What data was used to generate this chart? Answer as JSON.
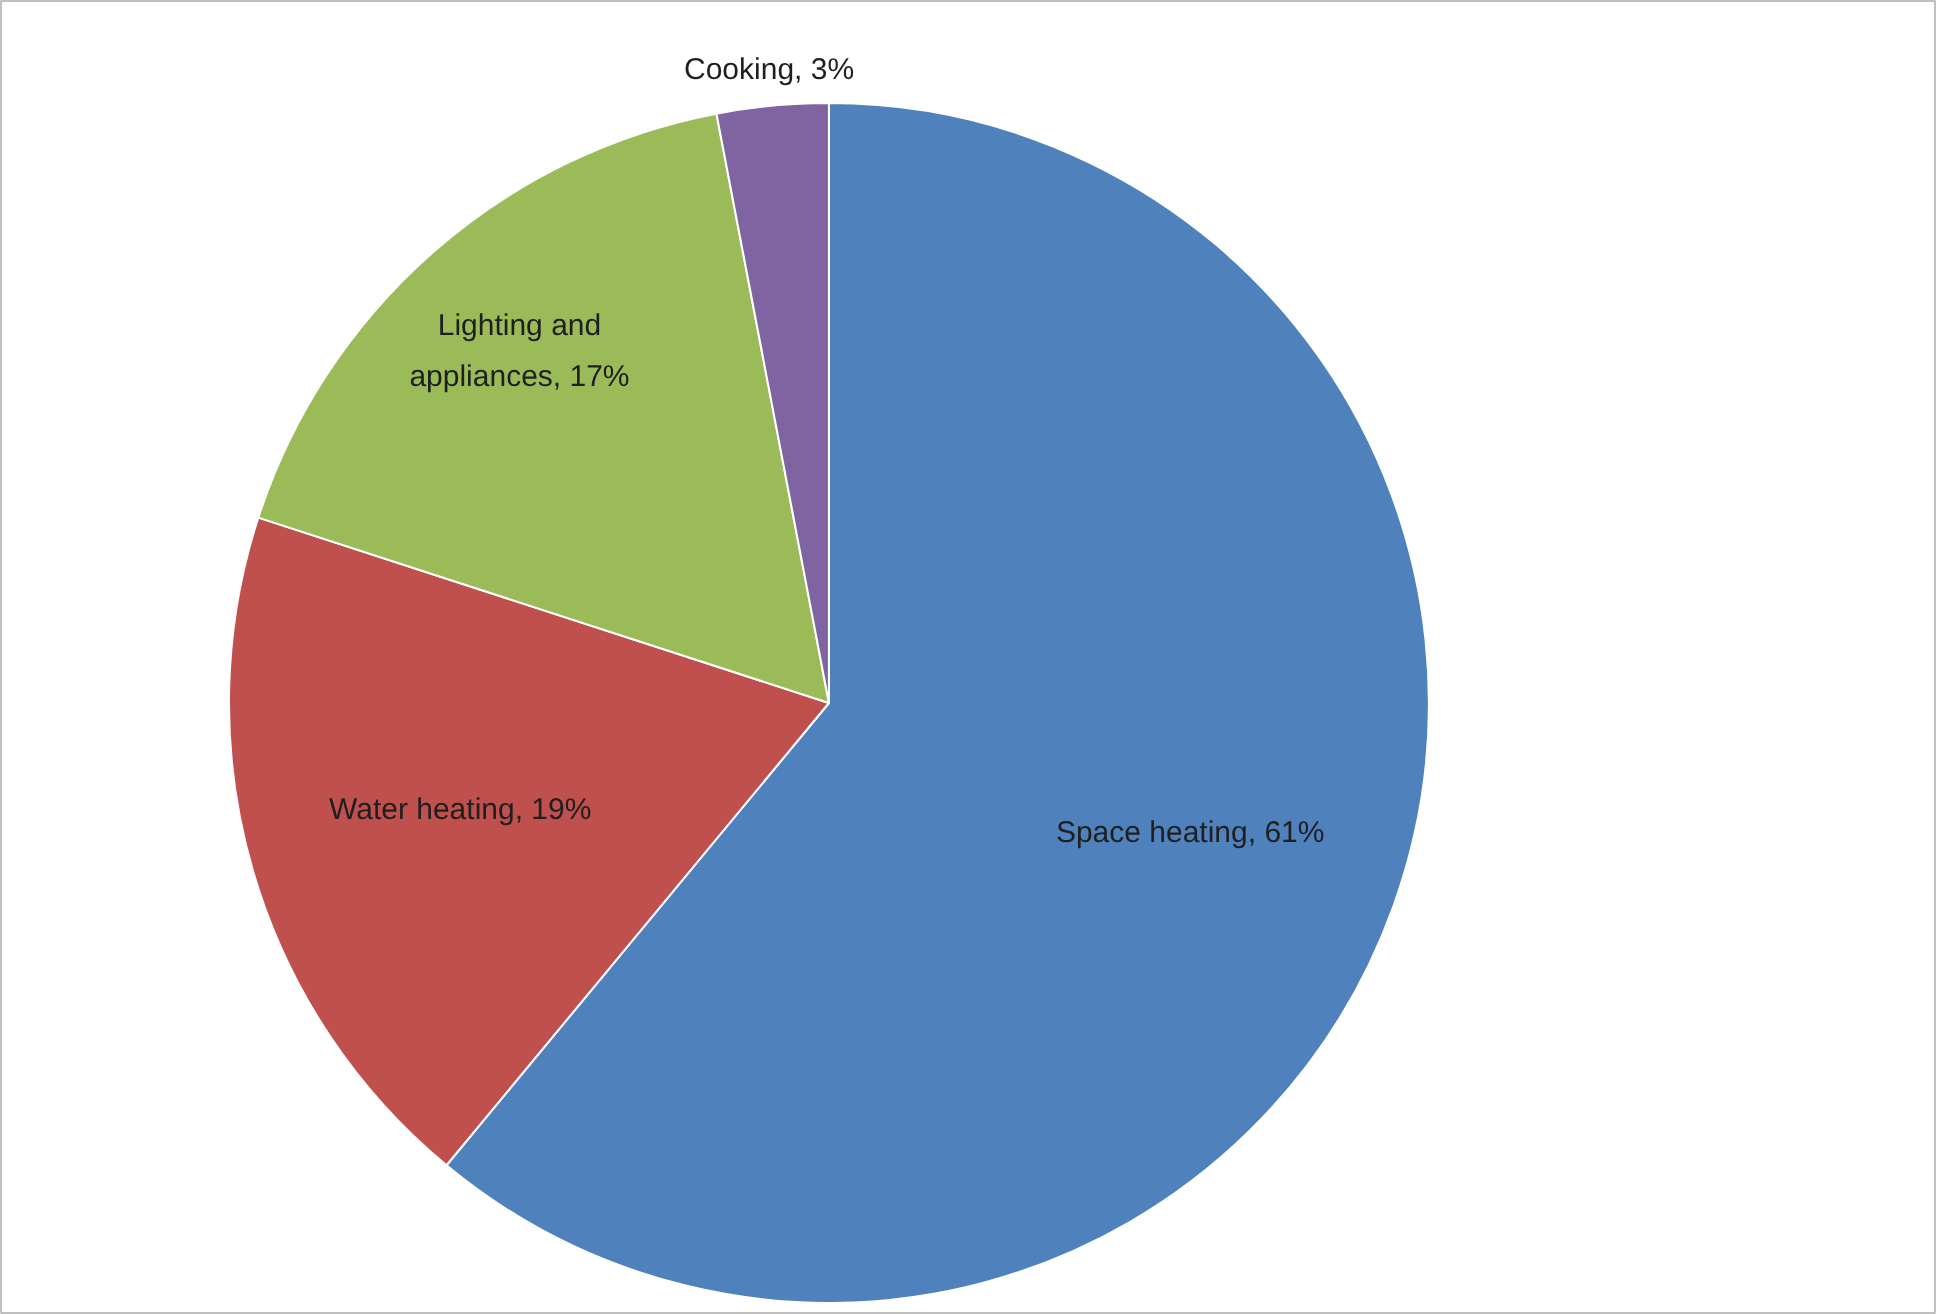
{
  "chart_data": {
    "type": "pie",
    "categories": [
      "Space heating",
      "Water heating",
      "Lighting and appliances",
      "Cooking"
    ],
    "values": [
      61,
      19,
      17,
      3
    ],
    "value_labels": [
      "61%",
      "19%",
      "17%",
      "3%"
    ],
    "colors": [
      "#4f81bd",
      "#c0504d",
      "#9bbb59",
      "#8064a2"
    ],
    "legend": false
  }
}
